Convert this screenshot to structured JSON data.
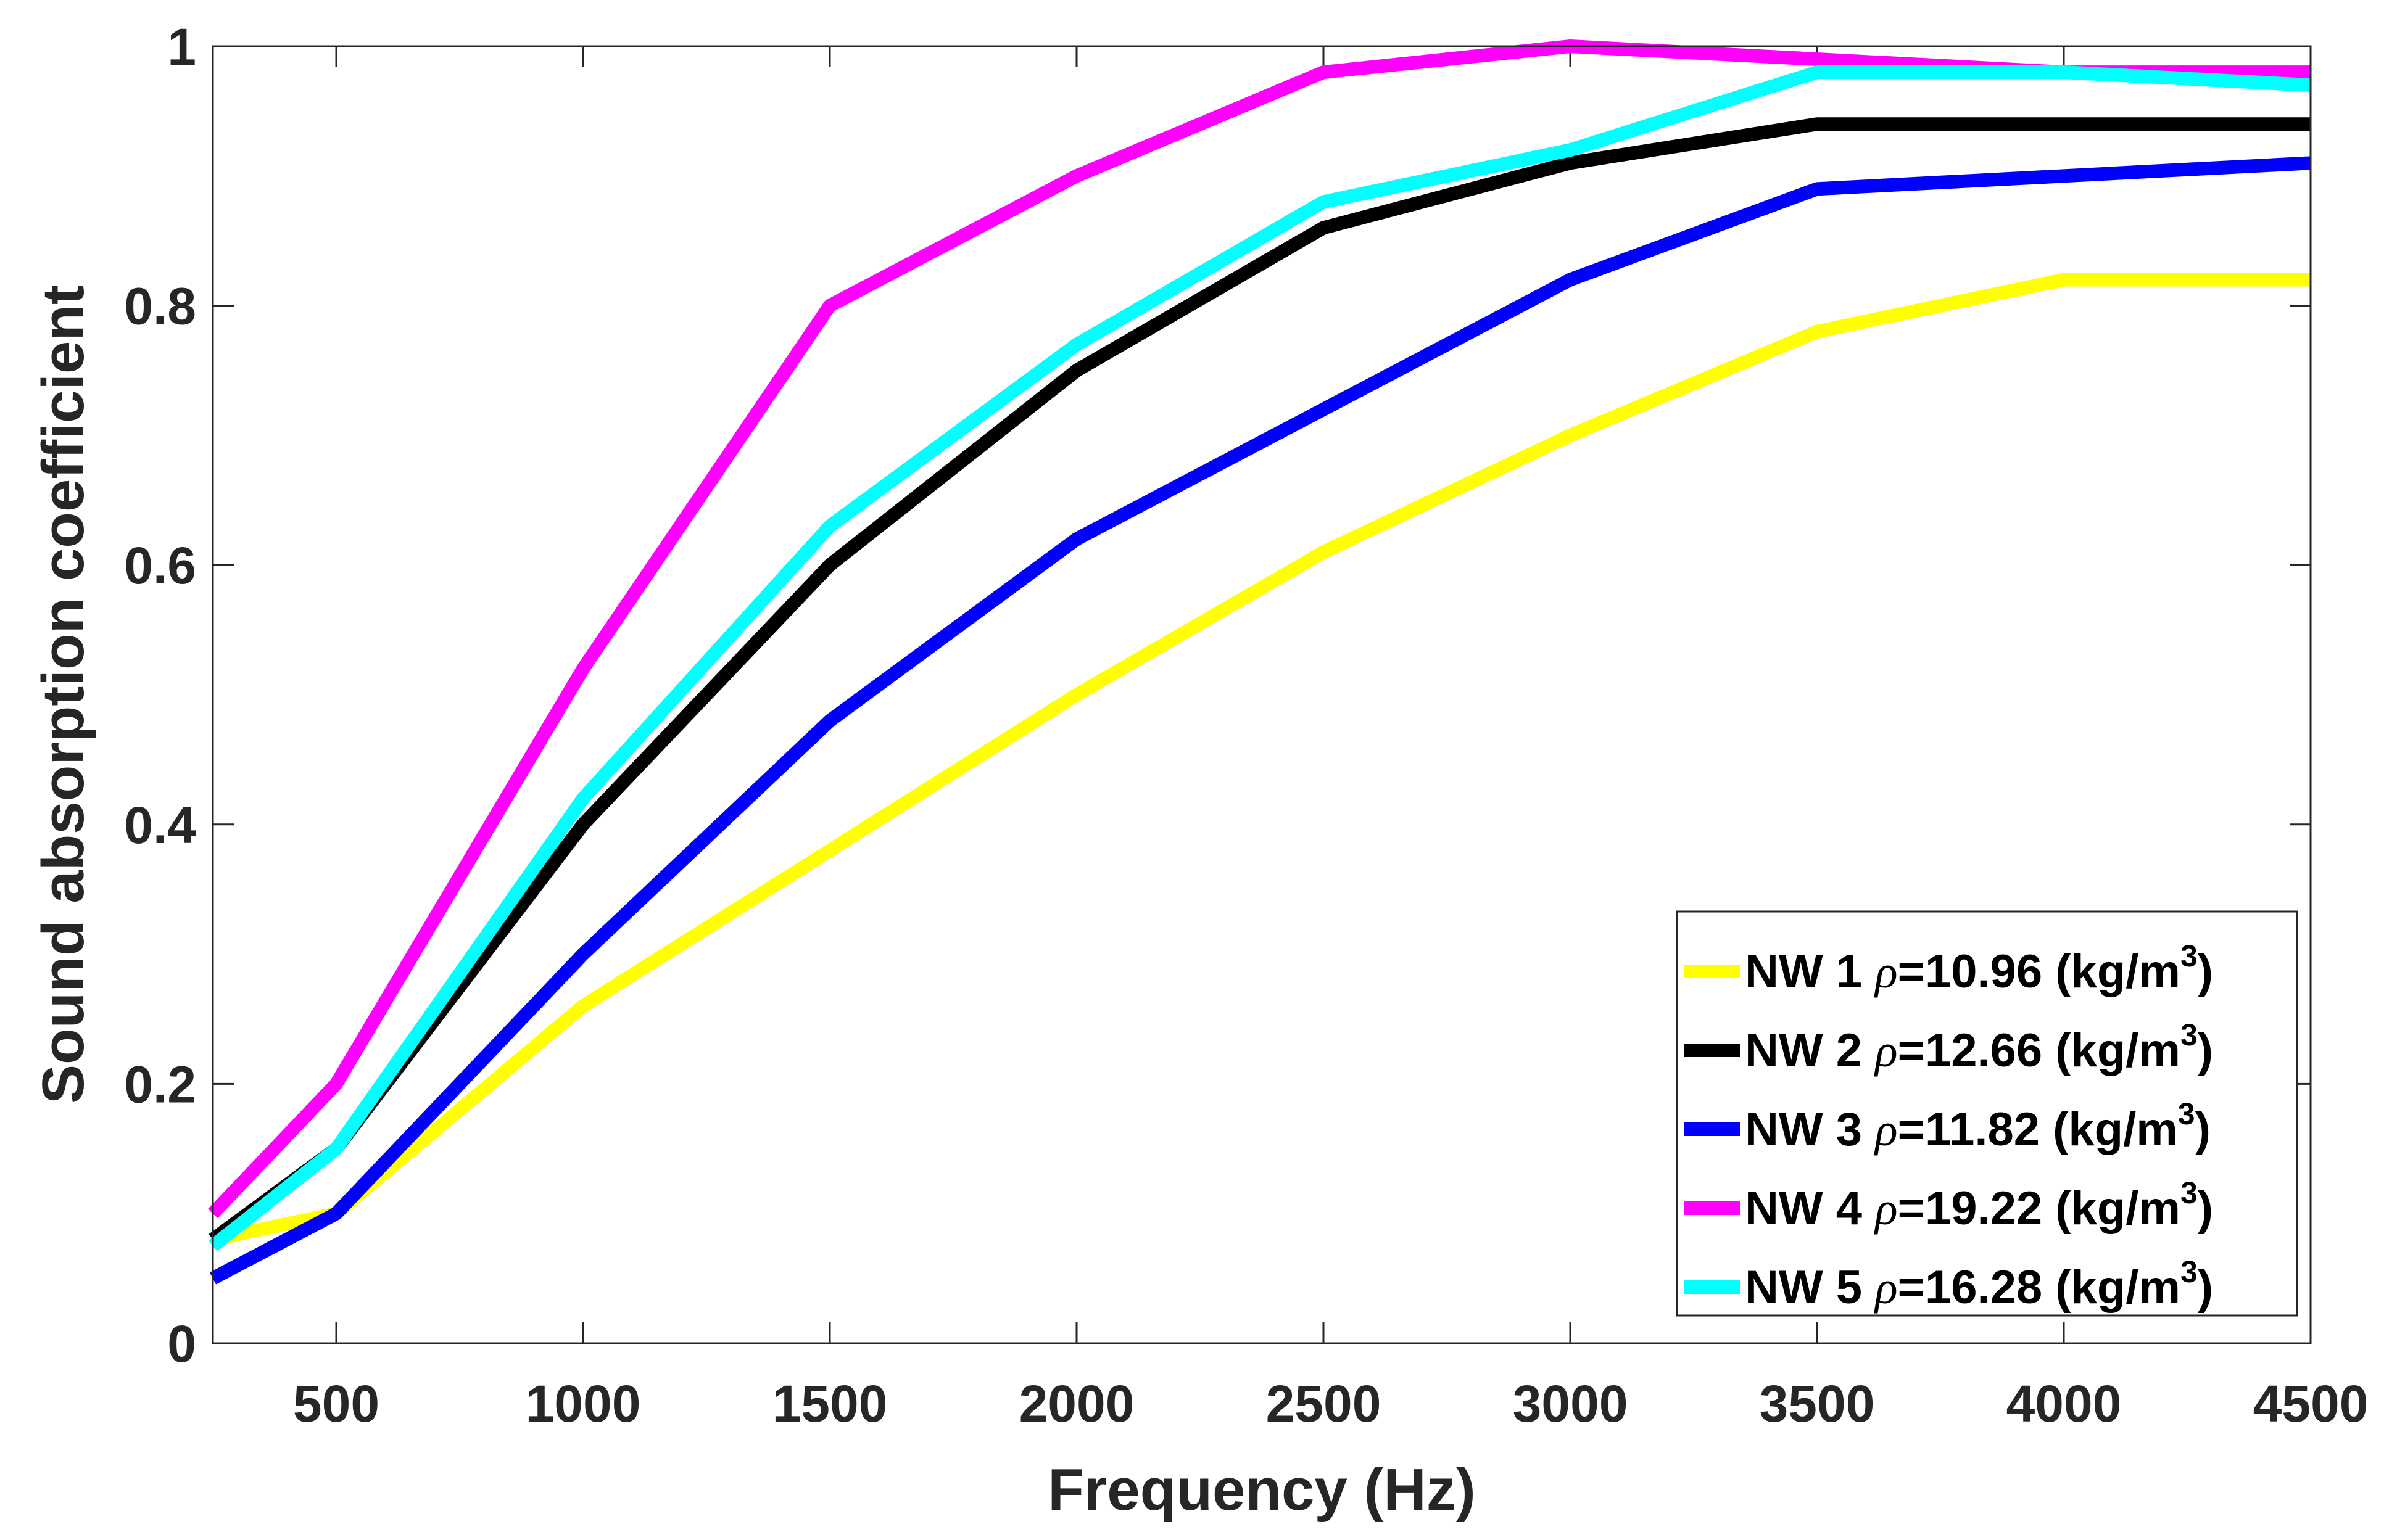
{
  "chart_data": {
    "type": "line",
    "title": "",
    "xlabel": "Frequency (Hz)",
    "ylabel": "Sound absorption coefficient",
    "xlim": [
      250,
      4500
    ],
    "ylim": [
      0,
      1
    ],
    "xticks": [
      500,
      1000,
      1500,
      2000,
      2500,
      3000,
      3500,
      4000,
      4500
    ],
    "yticks": [
      0,
      0.2,
      0.4,
      0.6,
      0.8,
      1
    ],
    "xtick_labels": [
      "500",
      "1000",
      "1500",
      "2000",
      "2500",
      "3000",
      "3500",
      "4000",
      "4500"
    ],
    "ytick_labels": [
      "0",
      "0.2",
      "0.4",
      "0.6",
      "0.8",
      "1"
    ],
    "grid": false,
    "legend_position": "bottom-right",
    "x": [
      250,
      500,
      1000,
      1500,
      2000,
      2500,
      3000,
      3500,
      4000,
      4500
    ],
    "series": [
      {
        "name": "NW 1",
        "density_symbol": "ρ",
        "density_value": "=10.96 (kg/m",
        "density_exp": "3",
        "density_close": ")",
        "color": "#ffff00",
        "values": [
          0.08,
          0.1,
          0.26,
          0.38,
          0.5,
          0.61,
          0.7,
          0.78,
          0.82,
          0.82
        ]
      },
      {
        "name": "NW 2",
        "density_symbol": "ρ",
        "density_value": "=12.66 (kg/m",
        "density_exp": "3",
        "density_close": ")",
        "color": "#000000",
        "values": [
          0.08,
          0.15,
          0.4,
          0.6,
          0.75,
          0.86,
          0.91,
          0.94,
          0.94,
          0.94
        ]
      },
      {
        "name": "NW 3",
        "density_symbol": "ρ",
        "density_value": "=11.82 (kg/m",
        "density_exp": "3",
        "density_close": ")",
        "color": "#0000ff",
        "values": [
          0.05,
          0.1,
          0.3,
          0.48,
          0.62,
          0.72,
          0.82,
          0.89,
          0.9,
          0.91
        ]
      },
      {
        "name": "NW 4",
        "density_symbol": "ρ",
        "density_value": "=19.22 (kg/m",
        "density_exp": "3",
        "density_close": ")",
        "color": "#ff00ff",
        "values": [
          0.1,
          0.2,
          0.52,
          0.8,
          0.9,
          0.98,
          1.0,
          0.99,
          0.98,
          0.98
        ]
      },
      {
        "name": "NW 5",
        "density_symbol": "ρ",
        "density_value": "=16.28 (kg/m",
        "density_exp": "3",
        "density_close": ")",
        "color": "#00ffff",
        "values": [
          0.075,
          0.15,
          0.42,
          0.63,
          0.77,
          0.88,
          0.92,
          0.98,
          0.98,
          0.97
        ]
      }
    ]
  }
}
